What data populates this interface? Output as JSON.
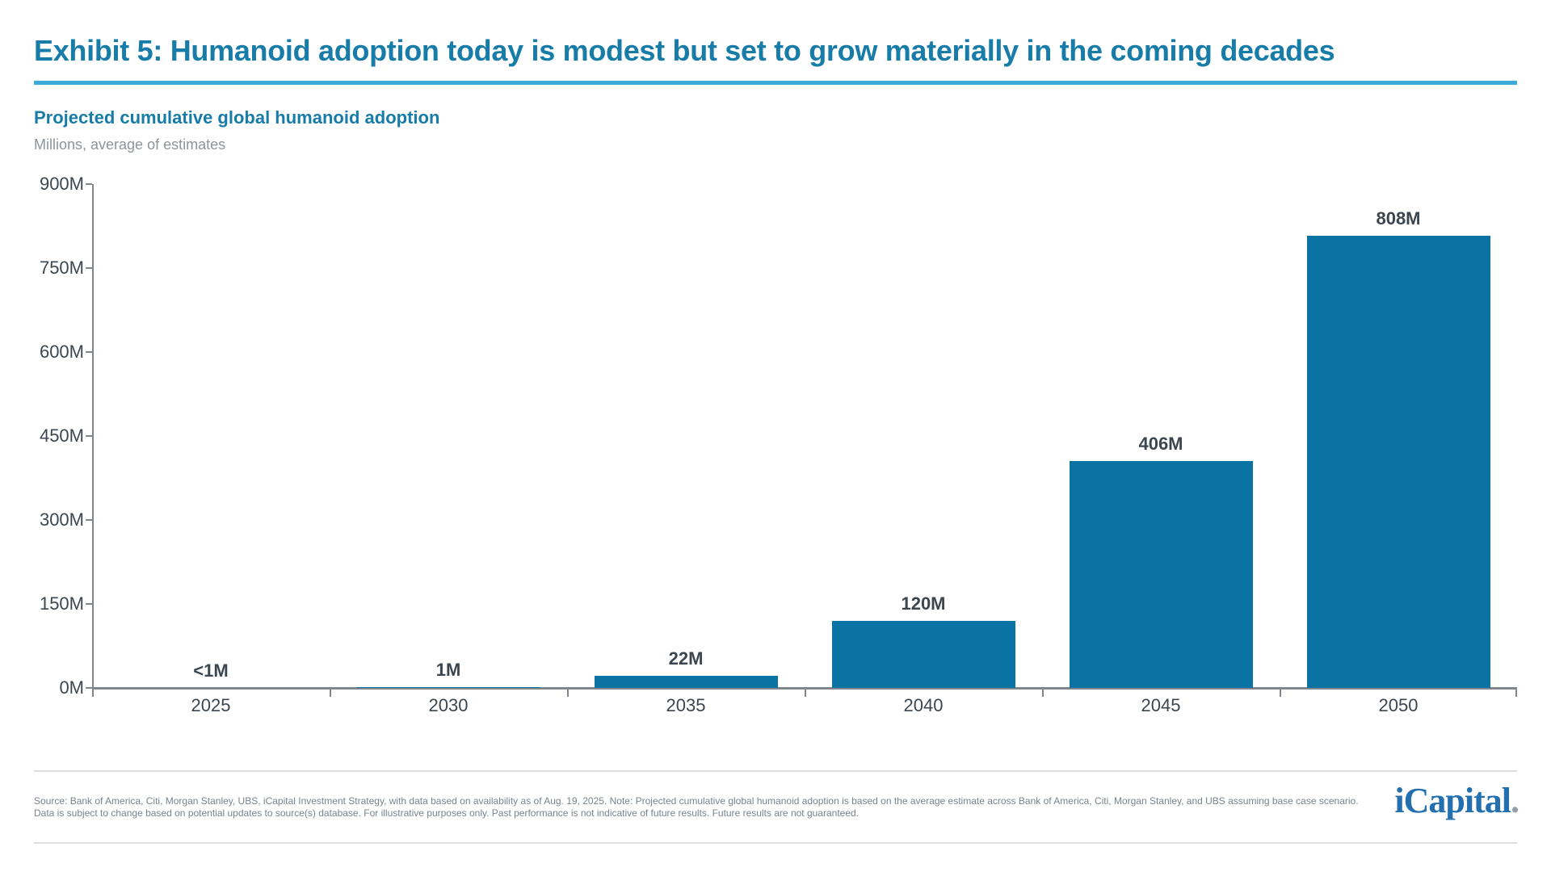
{
  "header": {
    "title": "Exhibit 5: Humanoid adoption today is modest but set to grow materially in the coming decades",
    "title_color": "#177CA8",
    "rule_color": "#3FA9DB"
  },
  "chart": {
    "heading": "Projected cumulative global humanoid adoption",
    "subheading": "Millions, average of estimates"
  },
  "chart_data": {
    "type": "bar",
    "title": "Projected cumulative global humanoid adoption",
    "subtitle": "Millions, average of estimates",
    "categories": [
      "2025",
      "2030",
      "2035",
      "2040",
      "2045",
      "2050"
    ],
    "values": [
      0.5,
      1,
      22,
      120,
      406,
      808
    ],
    "value_labels": [
      "<1M",
      "1M",
      "22M",
      "120M",
      "406M",
      "808M"
    ],
    "y_ticks": [
      0,
      150,
      300,
      450,
      600,
      750,
      900
    ],
    "y_tick_labels": [
      "0M",
      "150M",
      "300M",
      "450M",
      "600M",
      "750M",
      "900M"
    ],
    "ylim": [
      0,
      900
    ],
    "grid": false,
    "legend": null,
    "bar_color": "#0A73A3",
    "axis_color": "#81868C",
    "label_color": "#3C4650"
  },
  "footer": {
    "source_line1": "Source: Bank of America, Citi, Morgan Stanley, UBS, iCapital Investment Strategy, with data based on availability as of Aug. 19, 2025. Note: Projected cumulative global humanoid adoption is based on the average estimate across Bank of America, Citi, Morgan Stanley, and UBS assuming base case scenario.",
    "source_line2": "Data is subject to change based on potential updates to source(s) database. For illustrative purposes only. Past performance is not indicative of future results. Future results are not guaranteed.",
    "logo_text": "iCapital",
    "logo_suffix": ".",
    "logo_color": "#2470AE"
  }
}
